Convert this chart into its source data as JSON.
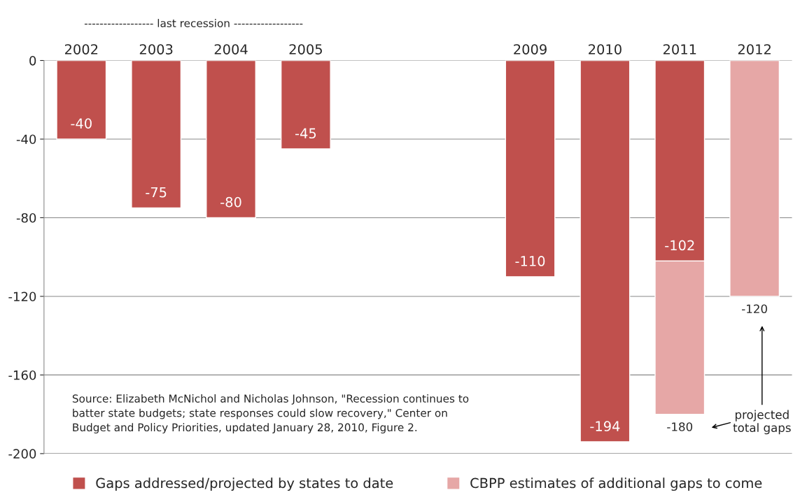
{
  "chart_data": {
    "type": "bar",
    "stacked": true,
    "categories": [
      "2002",
      "2003",
      "2004",
      "2005",
      null,
      null,
      "2009",
      "2010",
      "2011",
      "2012"
    ],
    "series": [
      {
        "name": "Gaps addressed/projected by states to date",
        "color": "#c0504d",
        "values": [
          -40,
          -75,
          -80,
          -45,
          null,
          null,
          -110,
          -194,
          -102,
          null
        ],
        "value_labels": [
          "-40",
          "-75",
          "-80",
          "-45",
          null,
          null,
          "-110",
          "-194",
          "-102",
          null
        ]
      },
      {
        "name": "CBPP estimates of additional gaps to come",
        "color": "#e6a7a6",
        "values": [
          null,
          null,
          null,
          null,
          null,
          null,
          null,
          null,
          -78,
          -120
        ]
      }
    ],
    "totals": [
      null,
      null,
      null,
      null,
      null,
      null,
      null,
      null,
      "-180",
      "-120"
    ],
    "ylim": [
      -200,
      0
    ],
    "yticks": [
      0,
      -40,
      -80,
      -120,
      -160,
      -200
    ],
    "grid": "y",
    "legend": "bottom",
    "annotations": [
      "------------------ last recession ------------------",
      "Source: Elizabeth McNichol and Nicholas Johnson, \"Recession continues to\nbatter state budgets; state responses could slow recovery,\" Center on\nBudget and Policy Priorities, updated January 28, 2010, Figure 2.",
      "projected\ntotal gaps"
    ]
  }
}
